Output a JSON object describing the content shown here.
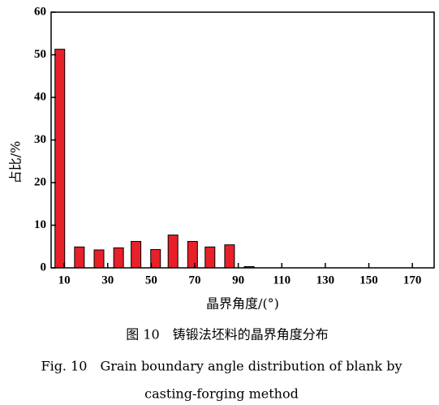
{
  "chart_data": {
    "type": "bar",
    "xlabel": "晶界角度/(°)",
    "ylabel": "占比/%",
    "caption_cn": "图 10　铸锻法坯料的晶界角度分布",
    "caption_en": [
      "Fig. 10　Grain boundary angle distribution of blank by",
      "casting-forging method"
    ],
    "x": [
      8,
      17,
      26,
      35,
      43,
      52,
      60,
      69,
      77,
      86,
      95
    ],
    "values": [
      51.3,
      4.9,
      4.2,
      4.7,
      6.2,
      4.3,
      7.7,
      6.2,
      4.9,
      5.4,
      0.3
    ],
    "color": "#e8202a",
    "xlim": [
      4,
      180
    ],
    "xticks": [
      10,
      30,
      50,
      70,
      90,
      110,
      130,
      150,
      170
    ],
    "ylim": [
      0,
      60
    ],
    "yticks": [
      0,
      10,
      20,
      30,
      40,
      50,
      60
    ]
  }
}
